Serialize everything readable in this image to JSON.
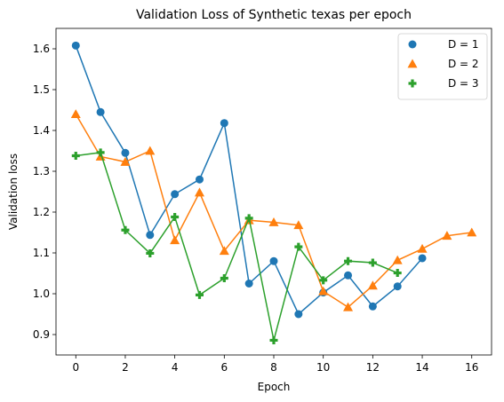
{
  "chart_data": {
    "type": "line",
    "title": "Validation Loss of Synthetic texas per epoch",
    "xlabel": "Epoch",
    "ylabel": "Validation loss",
    "xlim": [
      -0.8,
      16.8
    ],
    "ylim": [
      0.85,
      1.65
    ],
    "xticks": [
      0,
      2,
      4,
      6,
      8,
      10,
      12,
      14,
      16
    ],
    "yticks": [
      0.9,
      1.0,
      1.1,
      1.2,
      1.3,
      1.4,
      1.5,
      1.6
    ],
    "xtick_labels": [
      "0",
      "2",
      "4",
      "6",
      "8",
      "10",
      "12",
      "14",
      "16"
    ],
    "ytick_labels": [
      "0.9",
      "1.0",
      "1.1",
      "1.2",
      "1.3",
      "1.4",
      "1.5",
      "1.6"
    ],
    "grid": false,
    "legend_position": "top-right",
    "series": [
      {
        "name": "D = 1",
        "marker": "circle",
        "color": "#1f77b4",
        "x": [
          0,
          1,
          2,
          3,
          4,
          5,
          6,
          7,
          8,
          9,
          10,
          11,
          12,
          13,
          14
        ],
        "values": [
          1.608,
          1.445,
          1.345,
          1.144,
          1.244,
          1.28,
          1.418,
          1.025,
          1.08,
          0.95,
          1.003,
          1.045,
          0.969,
          1.018,
          1.087
        ]
      },
      {
        "name": "D = 2",
        "marker": "triangle",
        "color": "#ff7f0e",
        "x": [
          0,
          1,
          2,
          3,
          4,
          5,
          6,
          7,
          8,
          9,
          10,
          11,
          12,
          13,
          14,
          15,
          16
        ],
        "values": [
          1.44,
          1.336,
          1.323,
          1.35,
          1.131,
          1.248,
          1.105,
          1.18,
          1.175,
          1.168,
          1.006,
          0.967,
          1.02,
          1.082,
          1.11,
          1.142,
          1.15
        ]
      },
      {
        "name": "D = 3",
        "marker": "plus",
        "color": "#2ca02c",
        "x": [
          0,
          1,
          2,
          3,
          4,
          5,
          6,
          7,
          8,
          9,
          10,
          11,
          12,
          13
        ],
        "values": [
          1.338,
          1.346,
          1.156,
          1.099,
          1.188,
          0.997,
          1.038,
          1.185,
          0.886,
          1.115,
          1.033,
          1.08,
          1.076,
          1.051
        ]
      }
    ]
  }
}
